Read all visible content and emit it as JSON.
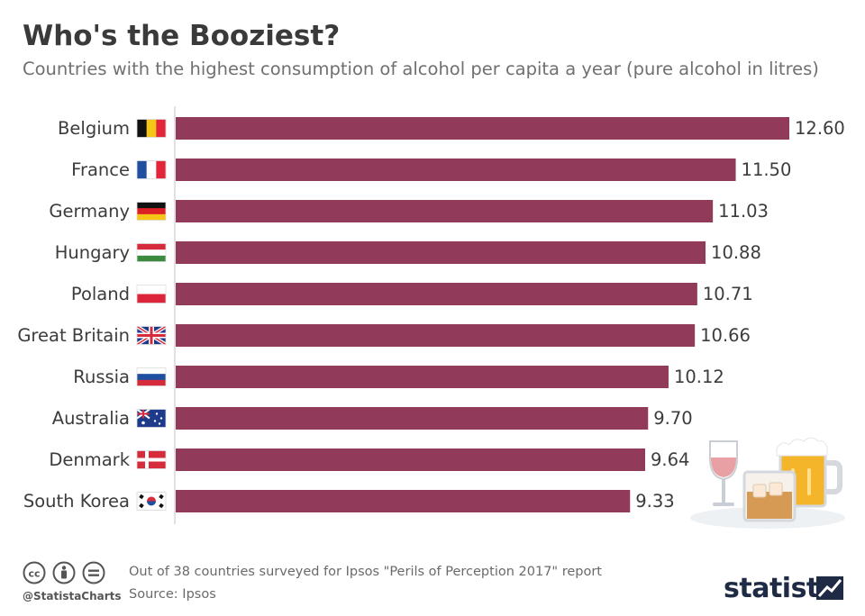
{
  "title": "Who's the Booziest?",
  "subtitle": "Countries with the highest consumption of alcohol per capita a year (pure alcohol in litres)",
  "chart_data": {
    "type": "bar",
    "orientation": "horizontal",
    "categories": [
      "Belgium",
      "France",
      "Germany",
      "Hungary",
      "Poland",
      "Great Britain",
      "Russia",
      "Australia",
      "Denmark",
      "South Korea"
    ],
    "values": [
      12.6,
      11.5,
      11.03,
      10.88,
      10.71,
      10.66,
      10.12,
      9.7,
      9.64,
      9.33
    ],
    "value_labels": [
      "12.60",
      "11.50",
      "11.03",
      "10.88",
      "10.71",
      "10.66",
      "10.12",
      "9.70",
      "9.64",
      "9.33"
    ],
    "xlim": [
      0,
      12.6
    ],
    "grid": false,
    "bar_color": "#923a5a"
  },
  "flags": [
    "belgium-flag-icon",
    "france-flag-icon",
    "germany-flag-icon",
    "hungary-flag-icon",
    "poland-flag-icon",
    "great-britain-flag-icon",
    "russia-flag-icon",
    "australia-flag-icon",
    "denmark-flag-icon",
    "south-korea-flag-icon"
  ],
  "footer": {
    "note": "Out of 38 countries surveyed for Ipsos \"Perils of Perception 2017\" report",
    "source": "Source: Ipsos",
    "handle": "@StatistaCharts",
    "brand": "statista"
  },
  "colors": {
    "title": "#3a3a3a",
    "subtitle": "#707070",
    "brand": "#1f2a44"
  }
}
